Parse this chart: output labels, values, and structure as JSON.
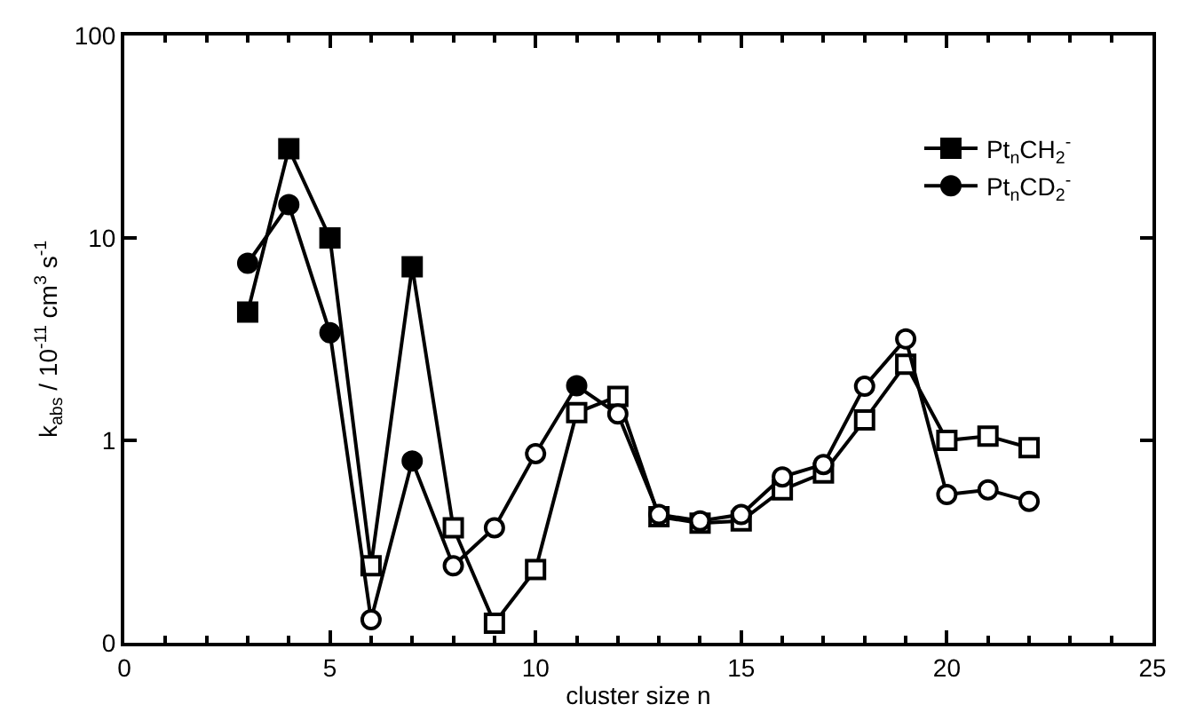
{
  "chart_data": {
    "type": "line",
    "xlabel": "cluster size n",
    "ylabel": "k$_{abs}$ / 10$^{-11}$ cm$^{3}$ s$^{-1}$",
    "x": [
      3,
      4,
      5,
      6,
      7,
      8,
      9,
      10,
      11,
      12,
      13,
      14,
      15,
      16,
      17,
      18,
      19,
      20,
      21,
      22
    ],
    "series": [
      {
        "name": "Pt$_{n}$CH$_{2}$$^{-}$",
        "color": "#000000",
        "marker": "square",
        "values": [
          4.3,
          27.6,
          10,
          0.24,
          7.2,
          0.37,
          0.125,
          0.23,
          1.37,
          1.65,
          0.42,
          0.39,
          0.4,
          0.57,
          0.69,
          1.26,
          2.38,
          1.0,
          1.05,
          0.92
        ],
        "colors": [
          "#000000",
          "#000000",
          "#000000",
          "#ffffff",
          "#000000",
          "#ffffff",
          "#ffffff",
          "#ffffff",
          "#ffffff",
          "#ffffff",
          "#ffffff",
          "#ffffff",
          "#ffffff",
          "#ffffff",
          "#ffffff",
          "#ffffff",
          "#ffffff",
          "#ffffff",
          "#ffffff",
          "#ffffff"
        ]
      },
      {
        "name": "Pt$_{n}$CD$_{2}$$^{-}$",
        "color": "#000000",
        "marker": "circle",
        "values": [
          7.5,
          14.6,
          3.4,
          0.13,
          0.79,
          0.24,
          0.37,
          0.86,
          1.86,
          1.35,
          0.43,
          0.4,
          0.43,
          0.66,
          0.76,
          1.85,
          3.17,
          0.54,
          0.57,
          0.5
        ],
        "colors": [
          "#000000",
          "#000000",
          "#000000",
          "#ffffff",
          "#000000",
          "#ffffff",
          "#ffffff",
          "#ffffff",
          "#000000",
          "#ffffff",
          "#ffffff",
          "#ffffff",
          "#ffffff",
          "#ffffff",
          "#ffffff",
          "#ffffff",
          "#ffffff",
          "#ffffff",
          "#ffffff",
          "#ffffff"
        ]
      }
    ],
    "xlim": [
      0,
      25
    ],
    "xticks": [
      0,
      5,
      10,
      15,
      20,
      25
    ],
    "log": true,
    "ylim": [
      0.1,
      100
    ],
    "yticks": [
      {
        "value": 0.1,
        "label": "0"
      },
      1,
      10,
      100
    ],
    "legend": "top right",
    "line_style": "solid"
  }
}
